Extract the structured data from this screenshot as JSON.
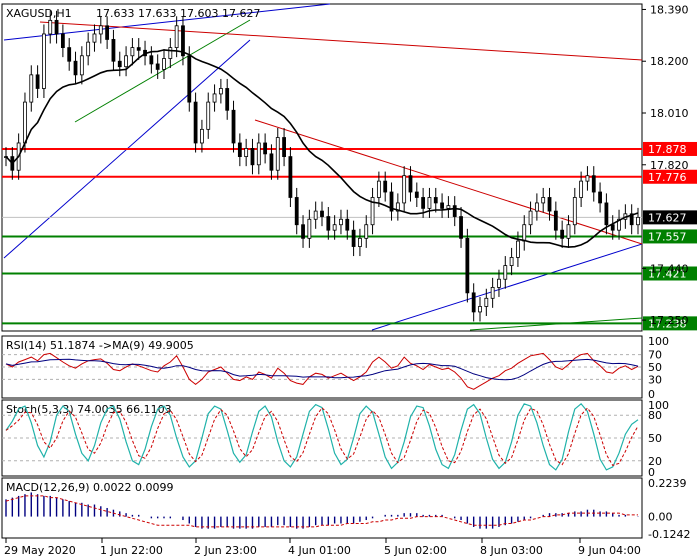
{
  "header": {
    "symbol": "XAGUSD,H1",
    "ohlc": "17.633 17.633 17.603 17.627"
  },
  "chart_data": {
    "type": "candlestick",
    "title": "XAGUSD,H1  17.633 17.633 17.603 17.627",
    "price_ticks": [
      "18.390",
      "18.200",
      "18.010",
      "17.820",
      "17.440",
      "17.250"
    ],
    "ylim": [
      17.21,
      18.41
    ],
    "x_labels": [
      "29 May 2020",
      "1 Jun 22:00",
      "2 Jun 23:00",
      "4 Jun 01:00",
      "5 Jun 02:00",
      "8 Jun 03:00",
      "9 Jun 04:00"
    ],
    "levels": [
      {
        "value": 17.878,
        "label": "17.878",
        "color": "#ff0000"
      },
      {
        "value": 17.776,
        "label": "17.776",
        "color": "#ff0000"
      },
      {
        "value": 17.557,
        "label": "17.557",
        "color": "#008000"
      },
      {
        "value": 17.421,
        "label": "17.421",
        "color": "#008000"
      },
      {
        "value": 17.238,
        "label": "17.238",
        "color": "#008000"
      }
    ],
    "current_price": {
      "value": 17.627,
      "label": "17.627"
    },
    "closes": [
      17.85,
      17.8,
      17.9,
      18.05,
      18.15,
      18.1,
      18.3,
      18.35,
      18.3,
      18.25,
      18.2,
      18.15,
      18.22,
      18.27,
      18.3,
      18.33,
      18.28,
      18.2,
      18.18,
      18.22,
      18.25,
      18.24,
      18.22,
      18.19,
      18.17,
      18.21,
      18.25,
      18.33,
      18.22,
      18.05,
      17.9,
      17.95,
      18.05,
      18.08,
      18.1,
      18.02,
      17.9,
      17.85,
      17.88,
      17.82,
      17.9,
      17.86,
      17.8,
      17.92,
      17.85,
      17.7,
      17.6,
      17.55,
      17.62,
      17.65,
      17.63,
      17.58,
      17.6,
      17.62,
      17.58,
      17.52,
      17.55,
      17.6,
      17.7,
      17.76,
      17.72,
      17.65,
      17.68,
      17.78,
      17.72,
      17.7,
      17.66,
      17.7,
      17.68,
      17.66,
      17.67,
      17.63,
      17.55,
      17.35,
      17.28,
      17.3,
      17.33,
      17.37,
      17.4,
      17.45,
      17.48,
      17.54,
      17.6,
      17.65,
      17.68,
      17.7,
      17.65,
      17.58,
      17.55,
      17.6,
      17.7,
      17.76,
      17.78,
      17.72,
      17.68,
      17.6,
      17.58,
      17.62,
      17.64,
      17.6,
      17.627
    ],
    "ma_window": 20,
    "rsi": {
      "label": "RSI(14) 51.1874  ->MA(9) 49.9005",
      "ticks": [
        "100",
        "70",
        "50",
        "30",
        "0"
      ],
      "ylim": [
        0,
        100
      ],
      "values": [
        55,
        50,
        58,
        62,
        66,
        60,
        70,
        72,
        65,
        58,
        52,
        48,
        55,
        60,
        62,
        63,
        56,
        46,
        44,
        50,
        55,
        52,
        48,
        44,
        42,
        52,
        58,
        68,
        50,
        30,
        22,
        30,
        42,
        46,
        50,
        40,
        30,
        28,
        34,
        30,
        42,
        38,
        32,
        48,
        40,
        28,
        24,
        22,
        34,
        40,
        38,
        32,
        36,
        40,
        34,
        28,
        34,
        42,
        58,
        66,
        58,
        48,
        52,
        66,
        56,
        52,
        46,
        54,
        50,
        46,
        48,
        42,
        32,
        18,
        14,
        20,
        26,
        32,
        36,
        44,
        48,
        56,
        62,
        68,
        70,
        72,
        62,
        50,
        46,
        54,
        64,
        70,
        72,
        60,
        52,
        42,
        40,
        48,
        52,
        46,
        51
      ]
    },
    "stoch": {
      "label": "Stoch(5,3,3) 74.0035 66.1103",
      "ticks": [
        "100",
        "80",
        "50",
        "20",
        "0"
      ],
      "ylim": [
        0,
        100
      ],
      "values": [
        60,
        72,
        88,
        92,
        70,
        40,
        25,
        45,
        80,
        92,
        85,
        55,
        30,
        20,
        40,
        70,
        88,
        92,
        75,
        45,
        20,
        15,
        35,
        65,
        88,
        92,
        80,
        50,
        25,
        12,
        20,
        50,
        82,
        92,
        88,
        60,
        30,
        18,
        28,
        58,
        85,
        92,
        78,
        45,
        20,
        12,
        25,
        55,
        85,
        94,
        90,
        62,
        30,
        15,
        22,
        50,
        82,
        92,
        84,
        55,
        25,
        10,
        18,
        45,
        78,
        92,
        90,
        66,
        35,
        15,
        10,
        28,
        60,
        88,
        94,
        82,
        50,
        22,
        10,
        18,
        45,
        80,
        95,
        92,
        70,
        40,
        15,
        8,
        22,
        58,
        88,
        95,
        85,
        55,
        22,
        8,
        12,
        30,
        55,
        68,
        74
      ]
    },
    "macd": {
      "label": "MACD(12,26,9) 0.0022 0.0099",
      "ticks": [
        "0.2239",
        "0.00",
        "-0.1242"
      ],
      "ylim": [
        -0.1242,
        0.2239
      ],
      "hist": [
        0.1,
        0.11,
        0.12,
        0.13,
        0.14,
        0.13,
        0.12,
        0.12,
        0.11,
        0.1,
        0.09,
        0.08,
        0.08,
        0.07,
        0.07,
        0.06,
        0.05,
        0.04,
        0.03,
        0.02,
        0.01,
        0.01,
        0.0,
        -0.01,
        -0.01,
        -0.01,
        -0.01,
        0.0,
        -0.02,
        -0.04,
        -0.06,
        -0.07,
        -0.07,
        -0.07,
        -0.06,
        -0.06,
        -0.07,
        -0.07,
        -0.07,
        -0.07,
        -0.06,
        -0.06,
        -0.06,
        -0.05,
        -0.05,
        -0.06,
        -0.07,
        -0.07,
        -0.06,
        -0.05,
        -0.05,
        -0.05,
        -0.04,
        -0.04,
        -0.04,
        -0.04,
        -0.03,
        -0.02,
        -0.01,
        0.0,
        0.01,
        0.01,
        0.01,
        0.02,
        0.02,
        0.02,
        0.01,
        0.01,
        0.01,
        0.01,
        0.0,
        -0.01,
        -0.02,
        -0.04,
        -0.06,
        -0.07,
        -0.07,
        -0.07,
        -0.06,
        -0.05,
        -0.04,
        -0.03,
        -0.02,
        -0.01,
        0.0,
        0.01,
        0.02,
        0.02,
        0.02,
        0.02,
        0.03,
        0.03,
        0.04,
        0.04,
        0.03,
        0.03,
        0.02,
        0.01,
        0.01,
        0.0,
        0.002
      ],
      "signal": [
        0.09,
        0.1,
        0.11,
        0.12,
        0.12,
        0.12,
        0.12,
        0.11,
        0.11,
        0.1,
        0.09,
        0.08,
        0.07,
        0.06,
        0.05,
        0.04,
        0.03,
        0.02,
        0.01,
        0.0,
        -0.01,
        -0.02,
        -0.03,
        -0.04,
        -0.05,
        -0.05,
        -0.05,
        -0.05,
        -0.05,
        -0.05,
        -0.06,
        -0.06,
        -0.06,
        -0.06,
        -0.06,
        -0.06,
        -0.06,
        -0.06,
        -0.06,
        -0.06,
        -0.06,
        -0.06,
        -0.06,
        -0.06,
        -0.06,
        -0.06,
        -0.06,
        -0.06,
        -0.06,
        -0.06,
        -0.05,
        -0.05,
        -0.05,
        -0.05,
        -0.04,
        -0.04,
        -0.04,
        -0.04,
        -0.03,
        -0.03,
        -0.02,
        -0.02,
        -0.01,
        -0.01,
        -0.01,
        0.0,
        0.0,
        0.0,
        0.0,
        0.0,
        -0.01,
        -0.02,
        -0.03,
        -0.04,
        -0.05,
        -0.05,
        -0.05,
        -0.05,
        -0.05,
        -0.04,
        -0.04,
        -0.03,
        -0.02,
        -0.02,
        -0.01,
        0.0,
        0.0,
        0.01,
        0.01,
        0.02,
        0.02,
        0.02,
        0.02,
        0.02,
        0.02,
        0.02,
        0.02,
        0.02,
        0.01,
        0.01,
        0.0099
      ]
    }
  }
}
